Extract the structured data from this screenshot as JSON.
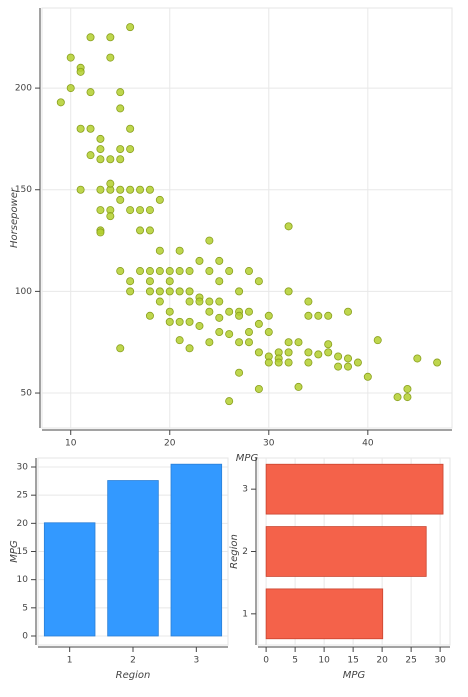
{
  "chart_data": [
    {
      "type": "scatter",
      "x_label": "MPG",
      "y_label": "Horsepower",
      "x": [
        9,
        10,
        10,
        11,
        11,
        11,
        11,
        12,
        12,
        12,
        12,
        13,
        13,
        13,
        13,
        13,
        13,
        13,
        14,
        14,
        14,
        14,
        14,
        14,
        14,
        15,
        15,
        15,
        15,
        15,
        15,
        15,
        15,
        16,
        16,
        16,
        16,
        16,
        16,
        16,
        17,
        17,
        17,
        17,
        18,
        18,
        18,
        18,
        18,
        18,
        18,
        19,
        19,
        19,
        19,
        19,
        20,
        20,
        20,
        20,
        20,
        21,
        21,
        21,
        21,
        21,
        22,
        22,
        22,
        22,
        22,
        23,
        23,
        23,
        23,
        24,
        24,
        24,
        24,
        24,
        25,
        25,
        25,
        25,
        25,
        26,
        26,
        26,
        26,
        27,
        27,
        27,
        27,
        27,
        28,
        28,
        28,
        28,
        29,
        29,
        29,
        29,
        30,
        30,
        30,
        30,
        31,
        31,
        31,
        32,
        32,
        32,
        32,
        32,
        33,
        33,
        34,
        34,
        34,
        34,
        35,
        35,
        36,
        36,
        36,
        37,
        37,
        38,
        38,
        38,
        39,
        40,
        41,
        43,
        44,
        44,
        45,
        47
      ],
      "y": [
        193,
        215,
        200,
        210,
        208,
        180,
        150,
        225,
        198,
        180,
        167,
        175,
        170,
        165,
        150,
        140,
        130,
        129,
        225,
        215,
        165,
        150,
        153,
        140,
        137,
        198,
        190,
        170,
        165,
        150,
        145,
        110,
        72,
        230,
        180,
        170,
        150,
        140,
        105,
        100,
        150,
        140,
        130,
        110,
        150,
        140,
        130,
        110,
        100,
        105,
        88,
        145,
        120,
        110,
        100,
        95,
        110,
        105,
        100,
        90,
        85,
        120,
        110,
        100,
        85,
        76,
        110,
        100,
        95,
        85,
        72,
        115,
        97,
        95,
        83,
        125,
        110,
        95,
        90,
        75,
        115,
        105,
        95,
        87,
        80,
        110,
        90,
        79,
        46,
        100,
        90,
        88,
        75,
        60,
        110,
        90,
        80,
        75,
        105,
        84,
        70,
        52,
        88,
        80,
        68,
        65,
        70,
        67,
        65,
        132,
        100,
        75,
        70,
        65,
        75,
        53,
        95,
        88,
        70,
        65,
        88,
        69,
        88,
        74,
        70,
        68,
        63,
        90,
        67,
        63,
        65,
        58,
        76,
        48,
        52,
        48,
        67,
        65
      ],
      "color": "#b3cf2e",
      "xlim": [
        7.1,
        48.5
      ],
      "ylim": [
        32.8,
        239.4
      ],
      "xticks": [
        10,
        20,
        30,
        40
      ],
      "yticks": [
        50,
        100,
        150,
        200
      ],
      "grid": true
    },
    {
      "type": "bar",
      "x_label": "Region",
      "y_label": "MPG",
      "categories": [
        "1",
        "2",
        "3"
      ],
      "values": [
        20.1,
        27.6,
        30.5
      ],
      "color": "#3399ff",
      "ylim": [
        -1.6,
        31.6
      ],
      "yticks": [
        0,
        5,
        10,
        15,
        20,
        25,
        30
      ],
      "grid": true
    },
    {
      "type": "barh",
      "x_label": "MPG",
      "y_label": "Region",
      "categories": [
        "1",
        "2",
        "3"
      ],
      "values": [
        20.1,
        27.6,
        30.5
      ],
      "color": "#f4624a",
      "xlim": [
        -1.4,
        31.7
      ],
      "xticks": [
        0,
        5,
        10,
        15,
        20,
        25,
        30
      ],
      "grid": true
    }
  ]
}
